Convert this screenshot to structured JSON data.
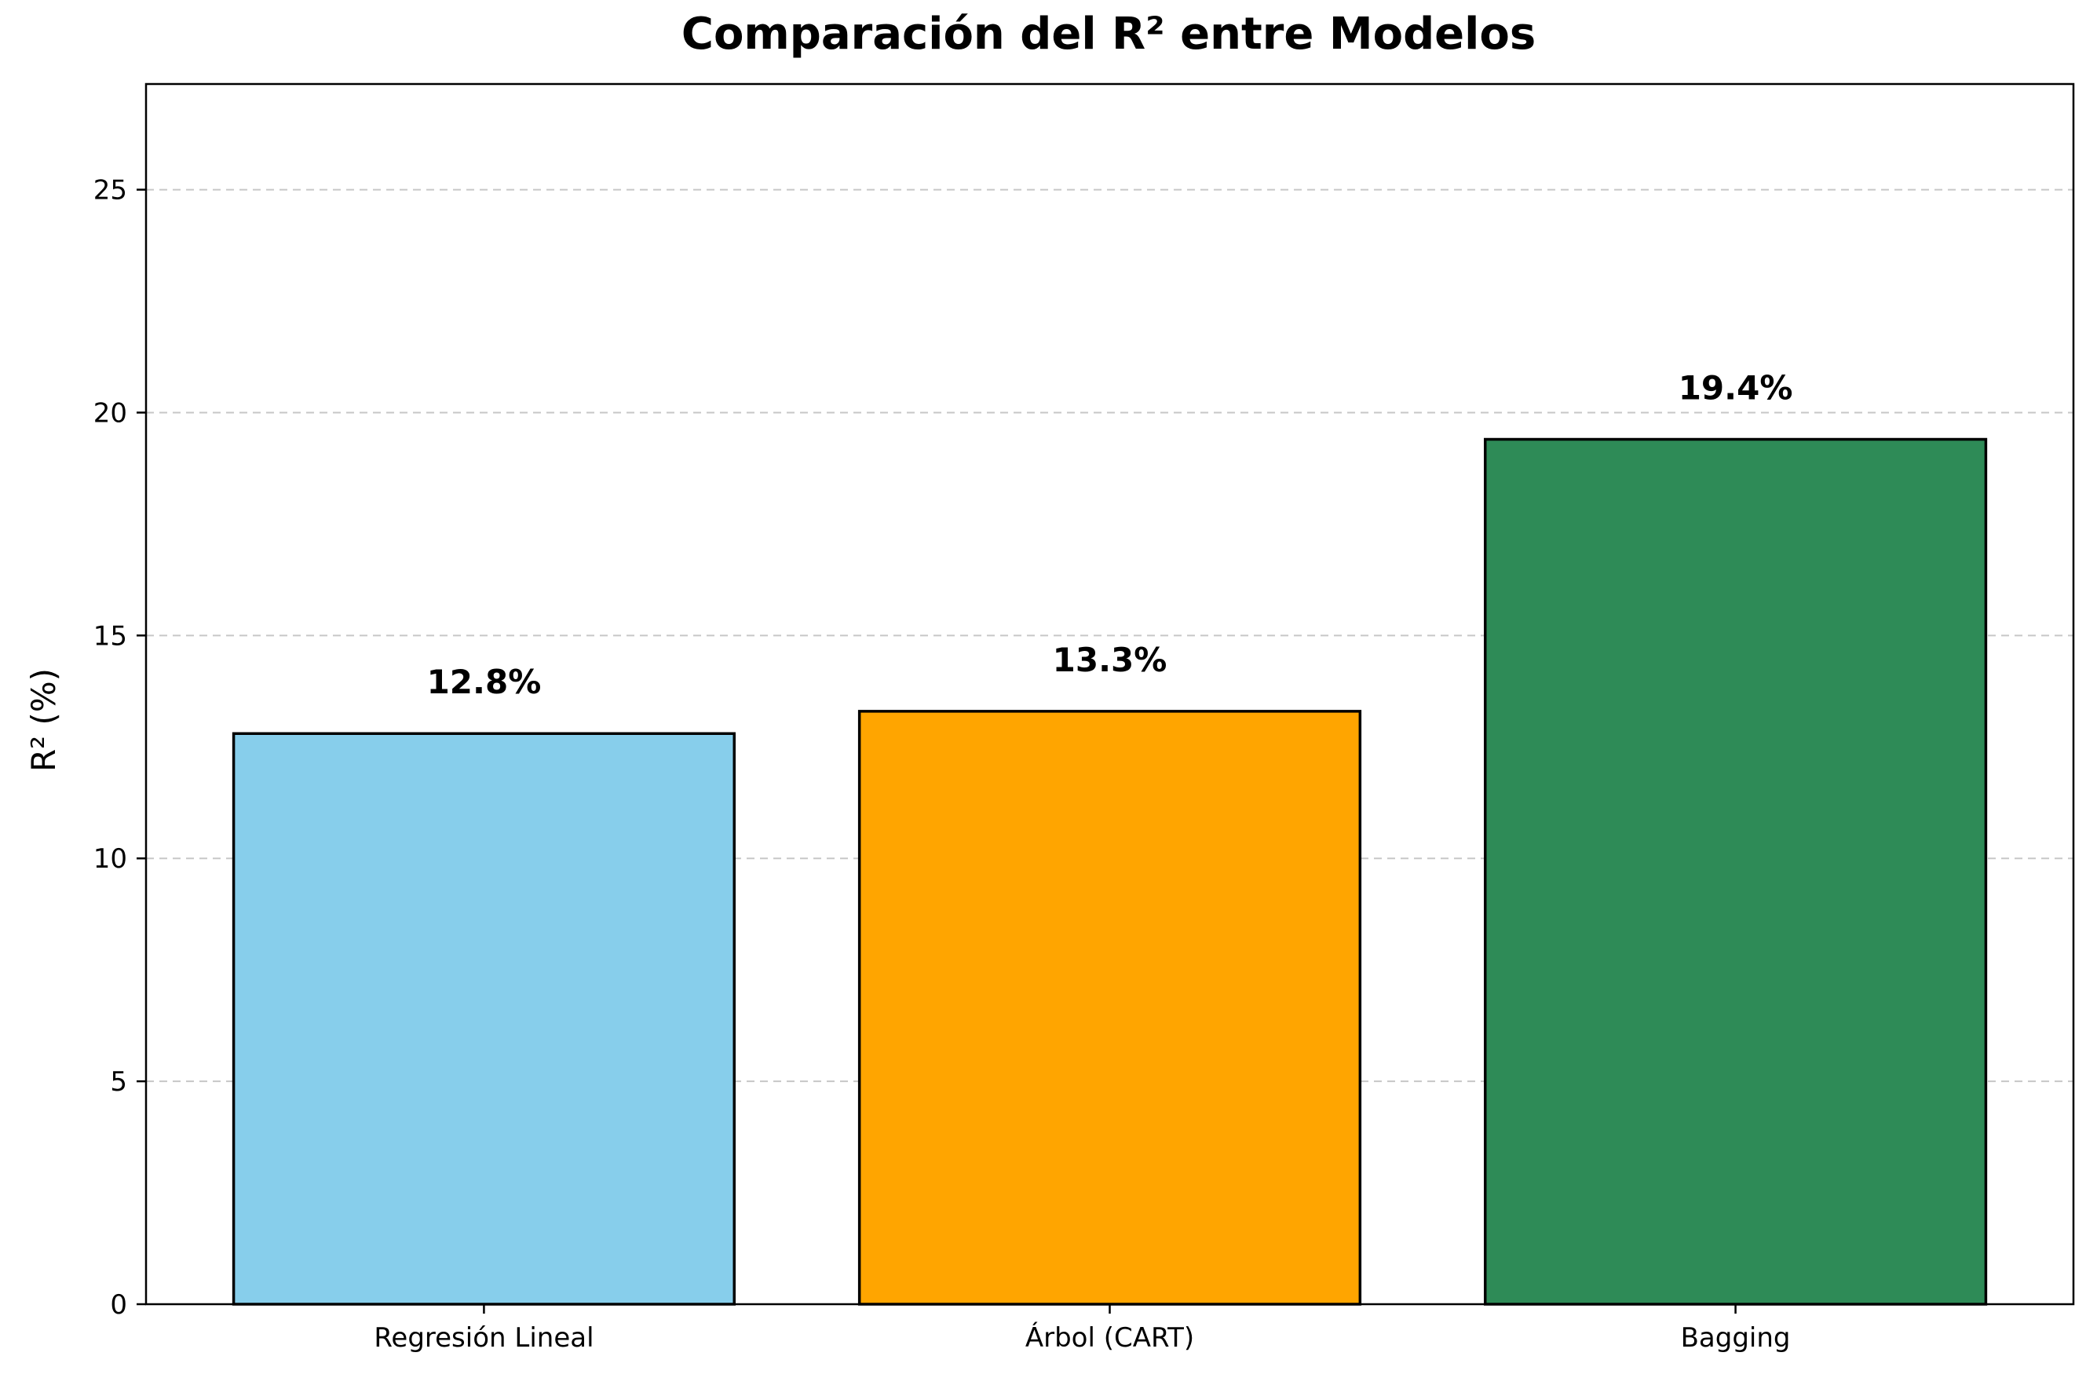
{
  "chart_data": {
    "type": "bar",
    "title": "Comparación del R² entre Modelos",
    "xlabel": "",
    "ylabel": "R² (%)",
    "categories": [
      "Regresión Lineal",
      "Árbol (CART)",
      "Bagging"
    ],
    "values": [
      12.8,
      13.3,
      19.4
    ],
    "data_labels": [
      "12.8%",
      "13.3%",
      "19.4%"
    ],
    "colors": [
      "#87CEEB",
      "#FFA500",
      "#2E8B57"
    ],
    "ylim": [
      0,
      27.37
    ],
    "yticks": [
      0,
      5,
      10,
      15,
      20,
      25
    ],
    "grid": "y-dashed",
    "legend": "none"
  }
}
